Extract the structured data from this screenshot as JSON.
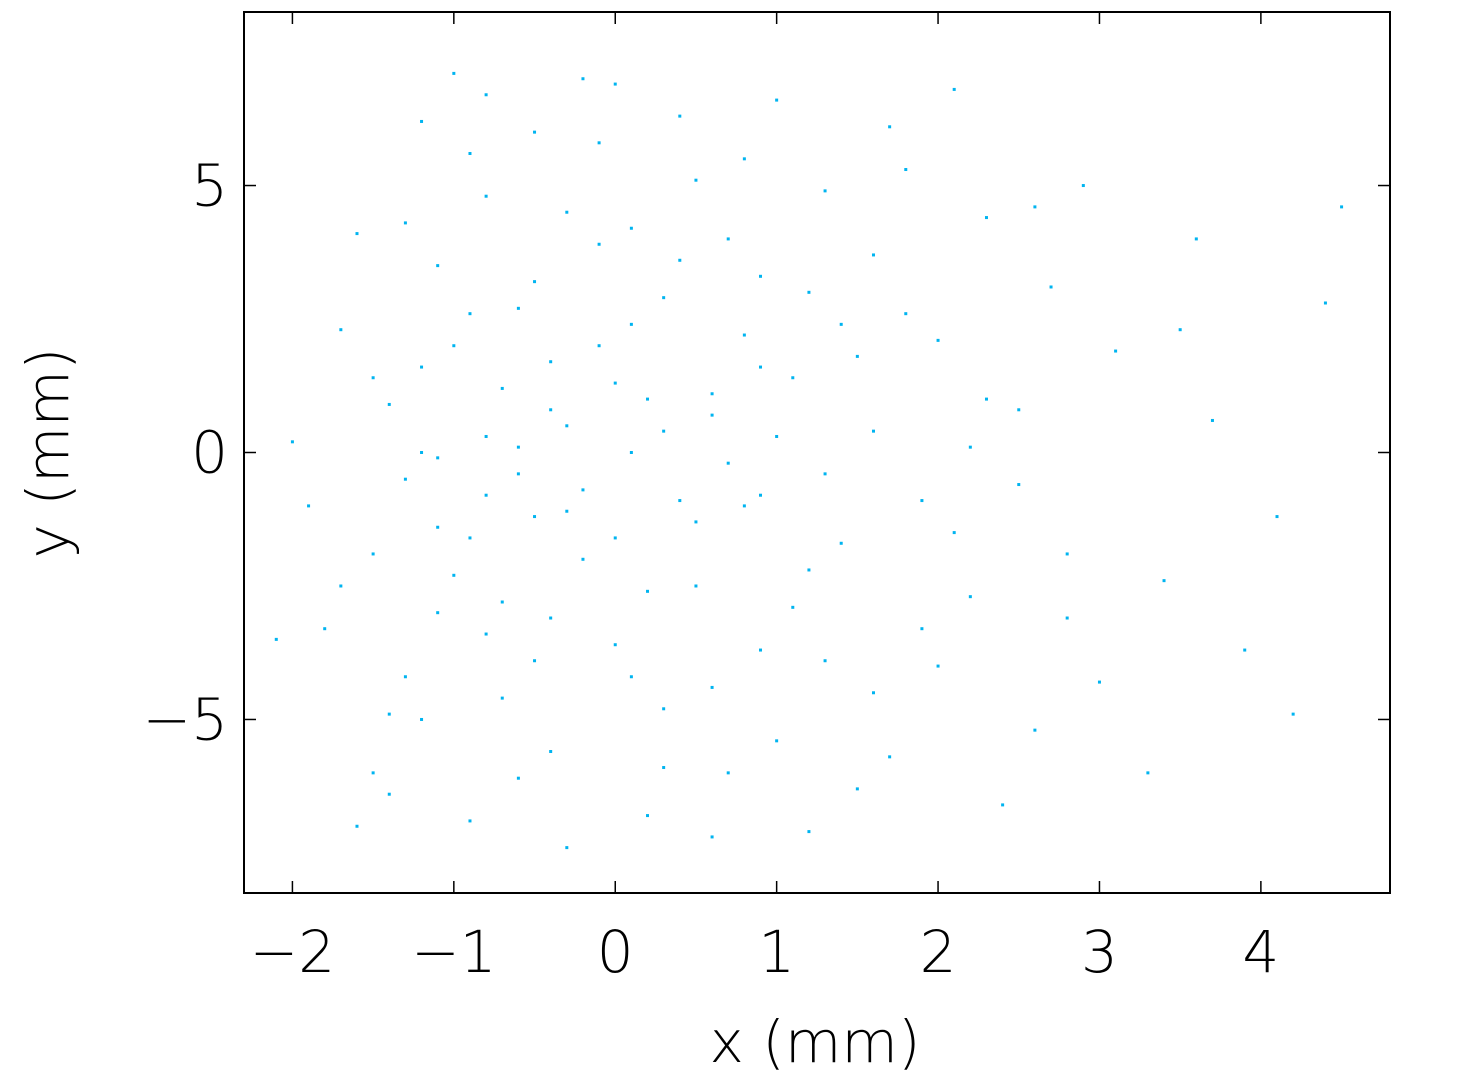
{
  "chart_data": {
    "type": "scatter",
    "x_label": "x  (mm)",
    "y_label": "y  (mm)",
    "color": "#00b4f0",
    "xlim": [
      -2.3,
      4.8
    ],
    "ylim": [
      -8.25,
      8.25
    ],
    "xticks": [
      {
        "value": -2,
        "label": "−2"
      },
      {
        "value": -1,
        "label": "−1"
      },
      0,
      1,
      2,
      3,
      4
    ],
    "yticks": [
      {
        "value": -5,
        "label": "−5"
      },
      0,
      5
    ],
    "x": [
      -0.8,
      -0.5,
      0.1,
      -1.1,
      0.6,
      -0.3,
      1.2,
      -0.9,
      0.3,
      -1.4,
      0.9,
      -0.6,
      1.6,
      -0.2,
      2.1,
      -1.0,
      0.4,
      -0.7,
      1.3,
      0.0,
      -1.2,
      0.7,
      -0.4,
      1.8,
      -1.5,
      0.2,
      2.5,
      -0.1,
      1.0,
      -0.8,
      -1.6,
      0.5,
      2.8,
      -0.3,
      1.5,
      -1.3,
      0.8,
      -0.6,
      3.1,
      0.1,
      -1.9,
      1.1,
      -0.9,
      2.3,
      0.3,
      -0.5,
      1.9,
      -1.1,
      0.6,
      2.6,
      -0.2,
      1.4,
      -1.7,
      0.0,
      3.4,
      -0.7,
      1.7,
      0.9,
      -1.3,
      2.0,
      -2.0,
      0.4,
      -0.4,
      1.2,
      2.9,
      -1.0,
      0.7,
      3.7,
      -0.8,
      1.6,
      0.2,
      -1.4,
      2.2,
      -0.1,
      1.0,
      -0.6,
      4.1,
      0.5,
      -1.2,
      2.4,
      -0.9,
      1.3,
      0.1,
      -1.5,
      3.0,
      0.8,
      -0.3,
      1.8,
      -1.8,
      2.7,
      0.6,
      -0.5,
      1.5,
      -1.1,
      3.6,
      0.3,
      -0.2,
      2.1,
      -1.6,
      4.4,
      0.0,
      -0.7,
      1.1,
      -1.3,
      2.5,
      0.4,
      -0.4,
      3.3,
      0.9,
      -1.0,
      1.4,
      -0.8,
      0.2,
      2.0,
      -1.2,
      3.9,
      0.7,
      -0.3,
      1.7,
      -1.7,
      0.5,
      -0.6,
      2.3,
      -0.9,
      1.2,
      0.1,
      4.5,
      -1.4,
      2.8,
      0.8,
      -0.1,
      1.0,
      -1.1,
      3.5,
      0.3,
      -0.5,
      1.9,
      -2.1,
      0.6,
      2.6,
      -0.8,
      1.3,
      0.0,
      -1.5,
      4.2,
      0.9,
      -0.4,
      2.2,
      -1.2,
      1.6
    ],
    "y": [
      0.3,
      -1.2,
      2.4,
      -3.0,
      1.1,
      4.5,
      -2.2,
      5.6,
      -4.8,
      0.9,
      3.3,
      -6.1,
      0.4,
      -0.7,
      -1.5,
      2.0,
      6.3,
      -2.8,
      4.9,
      -3.6,
      -5.0,
      -0.2,
      1.7,
      2.6,
      -1.9,
      -6.8,
      0.8,
      3.9,
      -5.4,
      6.7,
      4.1,
      -2.5,
      -3.1,
      0.5,
      -6.3,
      -4.2,
      5.5,
      -0.4,
      1.9,
      0.0,
      -1.0,
      1.4,
      -6.9,
      4.4,
      2.9,
      -3.9,
      -0.9,
      3.5,
      -7.2,
      -5.2,
      7.0,
      -1.7,
      2.3,
      -1.6,
      -2.4,
      1.2,
      6.1,
      -3.7,
      -0.5,
      2.1,
      0.2,
      -0.9,
      -5.6,
      3.0,
      5.0,
      -2.3,
      -6.0,
      0.6,
      4.8,
      -4.5,
      1.0,
      -6.4,
      -2.7,
      5.8,
      0.3,
      2.7,
      -1.2,
      -1.3,
      6.2,
      -6.6,
      -1.6,
      -0.4,
      4.2,
      1.4,
      -4.3,
      2.2,
      -7.4,
      5.3,
      -3.3,
      3.1,
      0.7,
      3.2,
      1.8,
      -0.1,
      4.0,
      -5.9,
      -2.0,
      6.8,
      -7.0,
      2.8,
      1.3,
      -4.6,
      -2.9,
      4.3,
      -0.6,
      3.6,
      0.8,
      -6.0,
      -0.8,
      7.1,
      2.4,
      -3.4,
      -2.6,
      -4.0,
      1.6,
      -3.7,
      4.0,
      -1.1,
      -5.7,
      -2.5,
      5.1,
      0.1,
      1.0,
      2.6,
      -7.1,
      -4.2,
      4.6,
      -4.9,
      -1.9,
      -1.0,
      2.0,
      6.6,
      -1.4,
      2.3,
      0.4,
      6.0,
      -3.3,
      -3.5,
      -4.4,
      4.6,
      -0.8,
      -3.9,
      6.9,
      -6.0,
      -4.9,
      1.6,
      -3.1,
      0.1,
      0.0,
      3.7
    ]
  }
}
